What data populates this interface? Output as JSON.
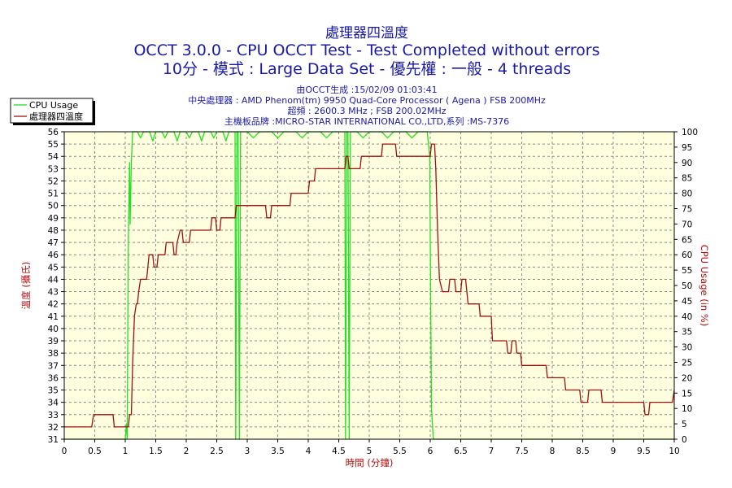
{
  "title_lines": [
    "處理器四溫度",
    "OCCT 3.0.0 - CPU OCCT Test - Test Completed without errors",
    "10分 - 模式 : Large Data Set - 優先權 : 一般 - 4 threads"
  ],
  "info_lines": [
    "由OCCT生成 :15/02/09 01:03:41",
    "中央處理器 : AMD Phenom(tm) 9950 Quad-Core Processor ( Agena ) FSB 200MHz",
    "超頻 : 2600.3 MHz ; FSB 200.02MHz",
    "主機板品牌 :MICRO-STAR INTERNATIONAL CO.,LTD,系列 :MS-7376"
  ],
  "colors": {
    "background": "#ffffff",
    "plot_bg": "#ffffe0",
    "title": "#1a1aa6",
    "axis_label": "#b01010",
    "temp_series": "#a01010",
    "cpu_series": "#20e020",
    "grid": "#8c8c8c"
  },
  "chart_data": {
    "type": "line",
    "xlabel": "時間 (分鐘)",
    "ylabel_left": "溫度 (攝氏)",
    "ylabel_right": "CPU Usage (in %)",
    "xlim": [
      0,
      10
    ],
    "ylim_left": [
      31,
      56
    ],
    "ylim_right": [
      0,
      100
    ],
    "x_ticks": [
      "0",
      "0.5",
      "1",
      "1.5",
      "2",
      "2.5",
      "3",
      "3.5",
      "4",
      "4.5",
      "5",
      "5.5",
      "6",
      "6.5",
      "7",
      "7.5",
      "8",
      "8.5",
      "9",
      "9.5",
      "10"
    ],
    "y_left_ticks": [
      "31",
      "32",
      "33",
      "34",
      "35",
      "36",
      "37",
      "38",
      "39",
      "40",
      "41",
      "42",
      "43",
      "44",
      "45",
      "46",
      "47",
      "48",
      "49",
      "50",
      "51",
      "52",
      "53",
      "54",
      "55",
      "56"
    ],
    "y_right_ticks": [
      "0",
      "5",
      "10",
      "15",
      "20",
      "25",
      "30",
      "35",
      "40",
      "45",
      "50",
      "55",
      "60",
      "65",
      "70",
      "75",
      "80",
      "85",
      "90",
      "95",
      "100"
    ],
    "grid": true,
    "legend_position": "top-left",
    "series": [
      {
        "name": "CPU Usage",
        "axis": "right",
        "points": [
          [
            0,
            0
          ],
          [
            1,
            0
          ],
          [
            1.02,
            5
          ],
          [
            1.03,
            0
          ],
          [
            1.05,
            65
          ],
          [
            1.07,
            90
          ],
          [
            1.08,
            70
          ],
          [
            1.1,
            90
          ],
          [
            1.12,
            100
          ],
          [
            1.14,
            100
          ],
          [
            1.2,
            100
          ],
          [
            1.25,
            98
          ],
          [
            1.3,
            100
          ],
          [
            1.4,
            100
          ],
          [
            1.45,
            97
          ],
          [
            1.5,
            100
          ],
          [
            1.6,
            100
          ],
          [
            1.65,
            98
          ],
          [
            1.7,
            100
          ],
          [
            1.8,
            100
          ],
          [
            1.85,
            97
          ],
          [
            1.9,
            100
          ],
          [
            2.0,
            100
          ],
          [
            2.05,
            98
          ],
          [
            2.1,
            100
          ],
          [
            2.2,
            100
          ],
          [
            2.25,
            97
          ],
          [
            2.3,
            100
          ],
          [
            2.4,
            100
          ],
          [
            2.45,
            98
          ],
          [
            2.5,
            100
          ],
          [
            2.6,
            100
          ],
          [
            2.65,
            97
          ],
          [
            2.7,
            100
          ],
          [
            2.8,
            100
          ],
          [
            2.81,
            0
          ],
          [
            2.83,
            100
          ],
          [
            2.85,
            100
          ],
          [
            2.87,
            0
          ],
          [
            2.89,
            100
          ],
          [
            3.0,
            100
          ],
          [
            3.1,
            98
          ],
          [
            3.2,
            100
          ],
          [
            3.4,
            100
          ],
          [
            3.5,
            98
          ],
          [
            3.6,
            100
          ],
          [
            3.8,
            100
          ],
          [
            3.9,
            98
          ],
          [
            4.0,
            100
          ],
          [
            4.2,
            100
          ],
          [
            4.3,
            98
          ],
          [
            4.4,
            100
          ],
          [
            4.6,
            100
          ],
          [
            4.61,
            0
          ],
          [
            4.63,
            100
          ],
          [
            4.65,
            100
          ],
          [
            4.67,
            0
          ],
          [
            4.69,
            100
          ],
          [
            4.8,
            100
          ],
          [
            4.9,
            98
          ],
          [
            5.0,
            100
          ],
          [
            5.2,
            100
          ],
          [
            5.3,
            98
          ],
          [
            5.4,
            100
          ],
          [
            5.6,
            100
          ],
          [
            5.7,
            98
          ],
          [
            5.8,
            100
          ],
          [
            5.95,
            100
          ],
          [
            5.99,
            92
          ],
          [
            6.02,
            10
          ],
          [
            6.05,
            0
          ],
          [
            10,
            0
          ]
        ]
      },
      {
        "name": "處理器四溫度",
        "axis": "left",
        "points": [
          [
            0,
            32
          ],
          [
            0.45,
            32
          ],
          [
            0.48,
            33
          ],
          [
            0.8,
            33
          ],
          [
            0.82,
            32
          ],
          [
            1.05,
            32
          ],
          [
            1.07,
            33
          ],
          [
            1.1,
            33
          ],
          [
            1.12,
            37
          ],
          [
            1.15,
            41
          ],
          [
            1.18,
            42
          ],
          [
            1.2,
            42
          ],
          [
            1.22,
            43
          ],
          [
            1.25,
            44
          ],
          [
            1.35,
            44
          ],
          [
            1.37,
            45
          ],
          [
            1.39,
            46
          ],
          [
            1.45,
            46
          ],
          [
            1.47,
            45
          ],
          [
            1.52,
            45
          ],
          [
            1.54,
            46
          ],
          [
            1.65,
            46
          ],
          [
            1.67,
            47
          ],
          [
            1.78,
            47
          ],
          [
            1.8,
            46
          ],
          [
            1.83,
            46
          ],
          [
            1.85,
            47
          ],
          [
            1.9,
            48
          ],
          [
            1.93,
            48
          ],
          [
            1.95,
            47
          ],
          [
            2.05,
            47
          ],
          [
            2.07,
            48
          ],
          [
            2.4,
            48
          ],
          [
            2.42,
            49
          ],
          [
            2.48,
            49
          ],
          [
            2.5,
            48
          ],
          [
            2.55,
            48
          ],
          [
            2.57,
            49
          ],
          [
            2.8,
            49
          ],
          [
            2.82,
            50
          ],
          [
            3.3,
            50
          ],
          [
            3.32,
            49
          ],
          [
            3.38,
            49
          ],
          [
            3.4,
            50
          ],
          [
            3.7,
            50
          ],
          [
            3.72,
            51
          ],
          [
            4.0,
            51
          ],
          [
            4.02,
            52
          ],
          [
            4.1,
            52
          ],
          [
            4.12,
            53
          ],
          [
            4.6,
            53
          ],
          [
            4.62,
            54
          ],
          [
            4.65,
            54
          ],
          [
            4.67,
            53
          ],
          [
            4.85,
            53
          ],
          [
            4.87,
            54
          ],
          [
            5.2,
            54
          ],
          [
            5.22,
            55
          ],
          [
            5.43,
            55
          ],
          [
            5.45,
            54
          ],
          [
            6.0,
            54
          ],
          [
            6.02,
            55
          ],
          [
            6.07,
            55
          ],
          [
            6.09,
            53
          ],
          [
            6.12,
            48
          ],
          [
            6.15,
            44
          ],
          [
            6.2,
            43
          ],
          [
            6.3,
            43
          ],
          [
            6.32,
            44
          ],
          [
            6.4,
            44
          ],
          [
            6.42,
            43
          ],
          [
            6.5,
            43
          ],
          [
            6.52,
            44
          ],
          [
            6.58,
            44
          ],
          [
            6.6,
            43
          ],
          [
            6.62,
            42
          ],
          [
            6.8,
            42
          ],
          [
            6.82,
            41
          ],
          [
            7.0,
            41
          ],
          [
            7.02,
            39
          ],
          [
            7.25,
            39
          ],
          [
            7.27,
            38
          ],
          [
            7.32,
            38
          ],
          [
            7.34,
            39
          ],
          [
            7.4,
            39
          ],
          [
            7.42,
            38
          ],
          [
            7.48,
            38
          ],
          [
            7.5,
            37
          ],
          [
            7.9,
            37
          ],
          [
            7.92,
            36
          ],
          [
            8.2,
            36
          ],
          [
            8.22,
            35
          ],
          [
            8.45,
            35
          ],
          [
            8.47,
            34
          ],
          [
            8.58,
            34
          ],
          [
            8.6,
            35
          ],
          [
            8.8,
            35
          ],
          [
            8.82,
            34
          ],
          [
            9.5,
            34
          ],
          [
            9.52,
            33
          ],
          [
            9.58,
            33
          ],
          [
            9.6,
            34
          ],
          [
            9.97,
            34
          ],
          [
            10,
            35
          ]
        ]
      }
    ]
  }
}
